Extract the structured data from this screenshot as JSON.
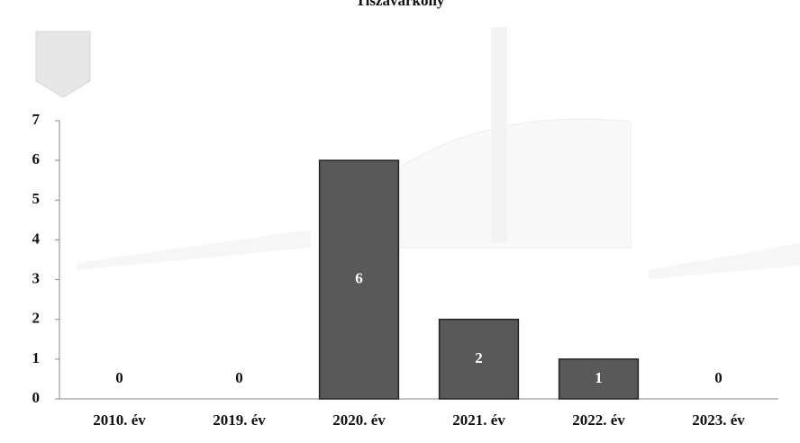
{
  "chart_data": {
    "type": "bar",
    "title": "Tiszavárkony",
    "categories": [
      "2010. év",
      "2019. év",
      "2020. év",
      "2021. év",
      "2022. év",
      "2023. év"
    ],
    "values": [
      0,
      0,
      6,
      2,
      1,
      0
    ],
    "color": "#595959",
    "ylim": [
      0,
      7
    ],
    "yticks": [
      0,
      1,
      2,
      3,
      4,
      5,
      6,
      7
    ],
    "grid": false
  }
}
